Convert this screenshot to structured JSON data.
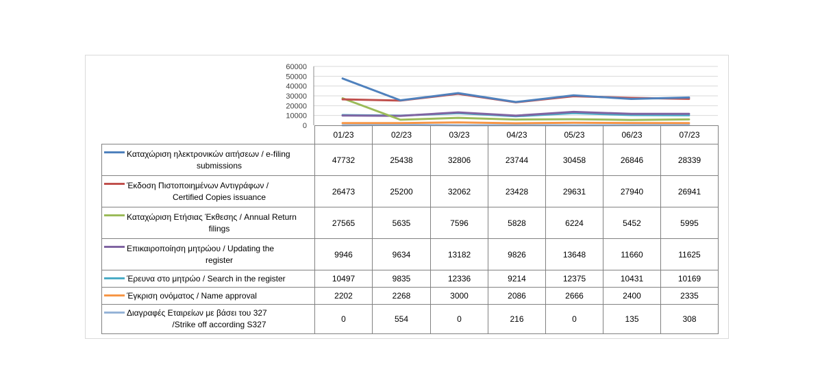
{
  "chart_data": {
    "type": "line",
    "categories": [
      "01/23",
      "02/23",
      "03/23",
      "04/23",
      "05/23",
      "06/23",
      "07/23"
    ],
    "y_ticks": [
      "60000",
      "50000",
      "40000",
      "30000",
      "20000",
      "10000",
      "0"
    ],
    "ylim": [
      0,
      60000
    ],
    "grid": true,
    "legend": "data-table",
    "series": [
      {
        "name_line1": "Καταχώριση ηλεκτρονικών αιτήσεων / e-filing",
        "name_line2": "submissions",
        "color": "#4f81bd",
        "values": [
          47732,
          25438,
          32806,
          23744,
          30458,
          26846,
          28339
        ],
        "labels": [
          "47732",
          "25438",
          "32806",
          "23744",
          "30458",
          "26846",
          "28339"
        ]
      },
      {
        "name_line1": "Έκδοση Πιστοποιημένων Αντιγράφων /",
        "name_line2": "Certified Copies issuance",
        "color": "#c0504d",
        "values": [
          26473,
          25200,
          32062,
          23428,
          29631,
          27940,
          26941
        ],
        "labels": [
          "26473",
          "25200",
          "32062",
          "23428",
          "29631",
          "27940",
          "26941"
        ]
      },
      {
        "name_line1": "Καταχώριση Ετήσιας Έκθεσης / Annual Return",
        "name_line2": "filings",
        "color": "#9bbb59",
        "values": [
          27565,
          5635,
          7596,
          5828,
          6224,
          5452,
          5995
        ],
        "labels": [
          "27565",
          "5635",
          "7596",
          "5828",
          "6224",
          "5452",
          "5995"
        ]
      },
      {
        "name_line1": "Επικαιροποίηση μητρώου / Updating the",
        "name_line2": "register",
        "color": "#8064a2",
        "values": [
          9946,
          9634,
          13182,
          9826,
          13648,
          11660,
          11625
        ],
        "labels": [
          "9946",
          "9634",
          "13182",
          "9826",
          "13648",
          "11660",
          "11625"
        ]
      },
      {
        "name_line1": "Έρευνα στο μητρώο / Search in the register",
        "name_line2": "",
        "color": "#4bacc6",
        "values": [
          10497,
          9835,
          12336,
          9214,
          12375,
          10431,
          10169
        ],
        "labels": [
          "10497",
          "9835",
          "12336",
          "9214",
          "12375",
          "10431",
          "10169"
        ]
      },
      {
        "name_line1": "Έγκριση ονόματος / Name approval",
        "name_line2": "",
        "color": "#f79646",
        "values": [
          2202,
          2268,
          3000,
          2086,
          2666,
          2400,
          2335
        ],
        "labels": [
          "2202",
          "2268",
          "3000",
          "2086",
          "2666",
          "2400",
          "2335"
        ]
      },
      {
        "name_line1": "Διαγραφές Εταιρείων  με  βάσει του 327",
        "name_line2": "/Strike off according S327",
        "color": "#95b3d7",
        "values": [
          0,
          554,
          0,
          216,
          0,
          135,
          308
        ],
        "labels": [
          "0",
          "554",
          "0",
          "216",
          "0",
          "135",
          "308"
        ]
      }
    ]
  }
}
